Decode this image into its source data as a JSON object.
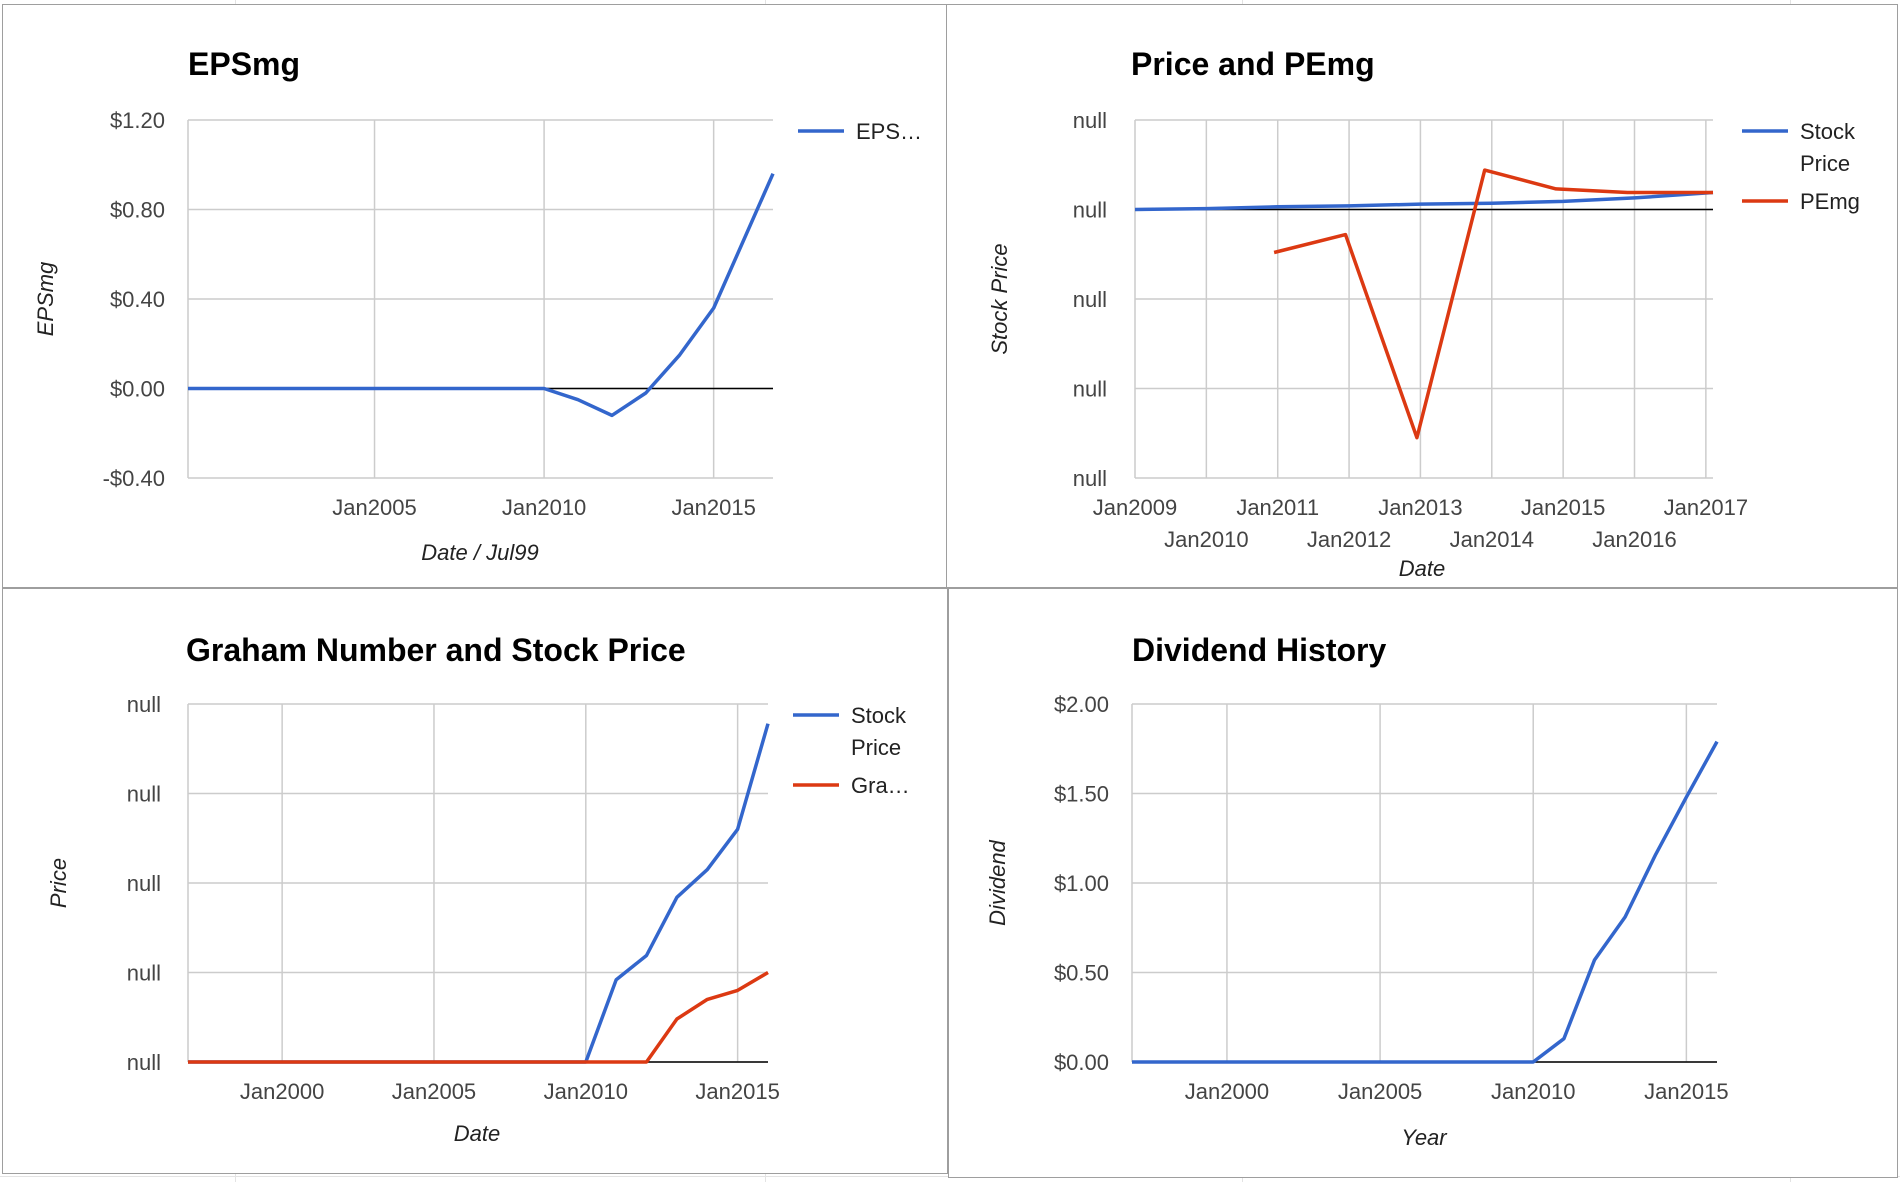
{
  "colors": {
    "blue": "#3366cc",
    "red": "#dc3912",
    "grid": "#cccccc",
    "baseline": "#000000"
  },
  "chart_data": [
    {
      "id": "epsmg",
      "type": "line",
      "title": "EPSmg",
      "xlabel": "Date / Jul99",
      "ylabel": "EPSmg",
      "xlim": [
        1999.5,
        2016.75
      ],
      "ylim": [
        -0.4,
        1.2
      ],
      "xticks": [
        {
          "v": 2005,
          "label": "Jan2005",
          "row": 0
        },
        {
          "v": 2010,
          "label": "Jan2010",
          "row": 0
        },
        {
          "v": 2015,
          "label": "Jan2015",
          "row": 0
        }
      ],
      "xgrid": [
        2005,
        2010,
        2015
      ],
      "yticks": [
        {
          "v": 1.2,
          "label": "$1.20"
        },
        {
          "v": 0.8,
          "label": "$0.80"
        },
        {
          "v": 0.4,
          "label": "$0.40"
        },
        {
          "v": 0.0,
          "label": "$0.00"
        },
        {
          "v": -0.4,
          "label": "-$0.40"
        }
      ],
      "baseline": 0,
      "grid": true,
      "legend_position": "right",
      "series": [
        {
          "name": "EPS…",
          "color": "#3366cc",
          "points": [
            [
              1999.5,
              0
            ],
            [
              2010,
              0
            ],
            [
              2011,
              -0.05
            ],
            [
              2012,
              -0.12
            ],
            [
              2013,
              -0.02
            ],
            [
              2014,
              0.15
            ],
            [
              2015,
              0.36
            ],
            [
              2016.75,
              0.96
            ]
          ]
        }
      ]
    },
    {
      "id": "price-pemg",
      "type": "line",
      "title": "Price and PEmg",
      "xlabel": "Date",
      "ylabel": "Stock Price",
      "xlim": [
        2009,
        2017.1
      ],
      "ylim": [
        0,
        4
      ],
      "xticks": [
        {
          "v": 2009,
          "label": "Jan2009",
          "row": 0
        },
        {
          "v": 2010,
          "label": "Jan2010",
          "row": 1
        },
        {
          "v": 2011,
          "label": "Jan2011",
          "row": 0
        },
        {
          "v": 2012,
          "label": "Jan2012",
          "row": 1
        },
        {
          "v": 2013,
          "label": "Jan2013",
          "row": 0
        },
        {
          "v": 2014,
          "label": "Jan2014",
          "row": 1
        },
        {
          "v": 2015,
          "label": "Jan2015",
          "row": 0
        },
        {
          "v": 2016,
          "label": "Jan2016",
          "row": 1
        },
        {
          "v": 2017,
          "label": "Jan2017",
          "row": 0
        }
      ],
      "xgrid": [
        2010,
        2011,
        2012,
        2013,
        2014,
        2015,
        2016,
        2017
      ],
      "yticks": [
        {
          "v": 4,
          "label": "null"
        },
        {
          "v": 3,
          "label": "null"
        },
        {
          "v": 2,
          "label": "null"
        },
        {
          "v": 1,
          "label": "null"
        },
        {
          "v": 0,
          "label": "null"
        }
      ],
      "baseline": 3,
      "grid": true,
      "legend_position": "right",
      "series": [
        {
          "name": "Stock Price",
          "name_lines": [
            "Stock",
            "Price"
          ],
          "color": "#3366cc",
          "points": [
            [
              2009,
              3.0
            ],
            [
              2010,
              3.01
            ],
            [
              2011,
              3.03
            ],
            [
              2012,
              3.04
            ],
            [
              2013,
              3.06
            ],
            [
              2014,
              3.07
            ],
            [
              2015,
              3.09
            ],
            [
              2016,
              3.13
            ],
            [
              2017.1,
              3.19
            ]
          ]
        },
        {
          "name": "PEmg",
          "name_lines": [
            "PEmg"
          ],
          "color": "#dc3912",
          "points": [
            [
              2010.95,
              2.52
            ],
            [
              2011.95,
              2.72
            ],
            [
              2012.95,
              0.45
            ],
            [
              2013.9,
              3.44
            ],
            [
              2014.9,
              3.23
            ],
            [
              2015.9,
              3.19
            ],
            [
              2017.1,
              3.19
            ]
          ]
        }
      ]
    },
    {
      "id": "graham",
      "type": "line",
      "title": "Graham Number and Stock Price",
      "xlabel": "Date",
      "ylabel": "Price",
      "xlim": [
        1996.9,
        2016
      ],
      "ylim": [
        0,
        4
      ],
      "xticks": [
        {
          "v": 2000,
          "label": "Jan2000",
          "row": 0
        },
        {
          "v": 2005,
          "label": "Jan2005",
          "row": 0
        },
        {
          "v": 2010,
          "label": "Jan2010",
          "row": 0
        },
        {
          "v": 2015,
          "label": "Jan2015",
          "row": 0
        }
      ],
      "xgrid": [
        2000,
        2005,
        2010,
        2015
      ],
      "yticks": [
        {
          "v": 4,
          "label": "null"
        },
        {
          "v": 3,
          "label": "null"
        },
        {
          "v": 2,
          "label": "null"
        },
        {
          "v": 1,
          "label": "null"
        },
        {
          "v": 0,
          "label": "null"
        }
      ],
      "baseline": 0,
      "grid": true,
      "legend_position": "right",
      "series": [
        {
          "name": "Stock Price",
          "name_lines": [
            "Stock",
            "Price"
          ],
          "color": "#3366cc",
          "points": [
            [
              1996.9,
              0
            ],
            [
              2010,
              0
            ],
            [
              2011,
              0.92
            ],
            [
              2012,
              1.19
            ],
            [
              2013,
              1.84
            ],
            [
              2014,
              2.15
            ],
            [
              2015,
              2.6
            ],
            [
              2016,
              3.78
            ]
          ]
        },
        {
          "name": "Gra…",
          "name_lines": [
            "Gra…"
          ],
          "color": "#dc3912",
          "points": [
            [
              1996.9,
              0
            ],
            [
              2012,
              0
            ],
            [
              2013,
              0.48
            ],
            [
              2014,
              0.7
            ],
            [
              2015,
              0.8
            ],
            [
              2016,
              1.0
            ]
          ]
        }
      ]
    },
    {
      "id": "dividend",
      "type": "line",
      "title": "Dividend History",
      "xlabel": "Year",
      "ylabel": "Dividend",
      "xlim": [
        1996.9,
        2016
      ],
      "ylim": [
        0,
        2
      ],
      "xticks": [
        {
          "v": 2000,
          "label": "Jan2000",
          "row": 0
        },
        {
          "v": 2005,
          "label": "Jan2005",
          "row": 0
        },
        {
          "v": 2010,
          "label": "Jan2010",
          "row": 0
        },
        {
          "v": 2015,
          "label": "Jan2015",
          "row": 0
        }
      ],
      "xgrid": [
        2000,
        2005,
        2010,
        2015
      ],
      "yticks": [
        {
          "v": 2.0,
          "label": "$2.00"
        },
        {
          "v": 1.5,
          "label": "$1.50"
        },
        {
          "v": 1.0,
          "label": "$1.00"
        },
        {
          "v": 0.5,
          "label": "$0.50"
        },
        {
          "v": 0.0,
          "label": "$0.00"
        }
      ],
      "baseline": 0,
      "grid": true,
      "legend_position": "none",
      "series": [
        {
          "name": "",
          "color": "#3366cc",
          "points": [
            [
              1996.9,
              0
            ],
            [
              2010,
              0
            ],
            [
              2011,
              0.13
            ],
            [
              2012,
              0.57
            ],
            [
              2013,
              0.81
            ],
            [
              2014,
              1.16
            ],
            [
              2015,
              1.48
            ],
            [
              2016,
              1.79
            ]
          ]
        }
      ]
    }
  ]
}
